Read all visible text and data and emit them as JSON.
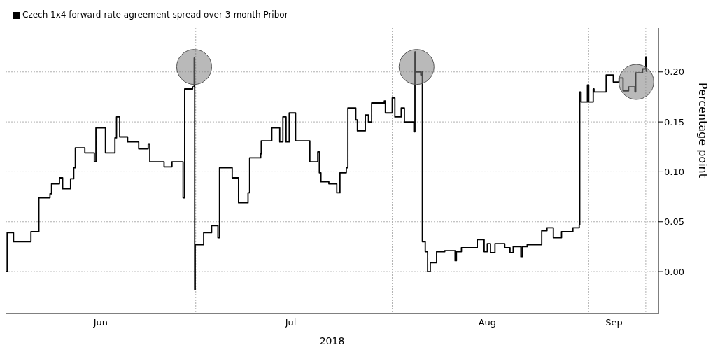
{
  "chart_data": {
    "type": "step",
    "legend": "top left",
    "grid": true,
    "ylabel": "Percentage point",
    "xlabel": "2018",
    "xlim": [
      "2018-06-01",
      "2018-09-12"
    ],
    "xticks": [
      {
        "value": "2018-06-01",
        "label": null
      },
      {
        "value": "2018-06-16",
        "label": "Jun"
      },
      {
        "value": "2018-07-01",
        "label": null
      },
      {
        "value": "2018-07-16",
        "label": "Jul"
      },
      {
        "value": "2018-08-01",
        "label": null
      },
      {
        "value": "2018-08-16",
        "label": "Aug"
      },
      {
        "value": "2018-09-01",
        "label": null
      },
      {
        "value": "2018-09-05",
        "label": "Sep"
      },
      {
        "value": "2018-09-10",
        "label": null
      }
    ],
    "ylim": [
      -0.042,
      0.244
    ],
    "yticks": [
      {
        "value": 0,
        "label": "0.00"
      },
      {
        "value": 0.05,
        "label": "0.05"
      },
      {
        "value": 0.1,
        "label": "0.10"
      },
      {
        "value": 0.15,
        "label": "0.15"
      },
      {
        "value": 0.2,
        "label": "0.20"
      }
    ],
    "x": [
      "2018-06-01T00:00",
      "2018-06-01T06:00",
      "2018-06-02T06:00",
      "2018-06-05T00:00",
      "2018-06-06T06:00",
      "2018-06-08T00:00",
      "2018-06-08T06:00",
      "2018-06-09T12:00",
      "2018-06-10T00:00",
      "2018-06-11T06:00",
      "2018-06-11T18:00",
      "2018-06-12T00:00",
      "2018-06-13T12:00",
      "2018-06-15T00:00",
      "2018-06-15T06:00",
      "2018-06-16T18:00",
      "2018-06-18T06:00",
      "2018-06-18T12:00",
      "2018-06-19T00:00",
      "2018-06-20T06:00",
      "2018-06-22T00:00",
      "2018-06-23T12:00",
      "2018-06-23T18:00",
      "2018-06-26T00:00",
      "2018-06-27T06:00",
      "2018-06-29T00:00",
      "2018-06-29T06:00",
      "2018-06-30T12:00",
      "2018-06-30T18:00",
      "2018-06-30T20:00",
      "2018-06-30T22:00",
      "2018-07-02T06:00",
      "2018-07-03T12:00",
      "2018-07-04T12:00",
      "2018-07-04T18:00",
      "2018-07-06T18:00",
      "2018-07-07T18:00",
      "2018-07-09T06:00",
      "2018-07-09T12:00",
      "2018-07-11T06:00",
      "2018-07-11T08:00",
      "2018-07-13T00:00",
      "2018-07-14T06:00",
      "2018-07-14T18:00",
      "2018-07-15T06:00",
      "2018-07-15T18:00",
      "2018-07-16T18:00",
      "2018-07-19T00:00",
      "2018-07-20T06:00",
      "2018-07-20T12:00",
      "2018-07-20T18:00",
      "2018-07-22T00:00",
      "2018-07-23T06:00",
      "2018-07-23T18:00",
      "2018-07-24T18:00",
      "2018-07-25T00:00",
      "2018-07-26T06:00",
      "2018-07-26T12:00",
      "2018-07-27T18:00",
      "2018-07-28T06:00",
      "2018-07-28T18:00",
      "2018-07-30T18:00",
      "2018-07-30T22:00",
      "2018-08-01T00:00",
      "2018-08-01T10:00",
      "2018-08-02T10:00",
      "2018-08-02T22:00",
      "2018-08-04T10:00",
      "2018-08-04T14:00",
      "2018-08-04T16:00",
      "2018-08-05T12:00",
      "2018-08-05T17:00",
      "2018-08-05T18:00",
      "2018-08-06T05:00",
      "2018-08-06T14:00",
      "2018-08-07T00:00",
      "2018-08-08T00:00",
      "2018-08-09T07:00",
      "2018-08-10T22:00",
      "2018-08-11T03:00",
      "2018-08-11T22:00",
      "2018-08-14T10:00",
      "2018-08-15T12:00",
      "2018-08-16T00:00",
      "2018-08-16T12:00",
      "2018-08-17T05:00",
      "2018-08-18T18:00",
      "2018-08-19T14:00",
      "2018-08-20T02:00",
      "2018-08-21T07:00",
      "2018-08-21T12:00",
      "2018-08-22T07:00",
      "2018-08-24T14:00",
      "2018-08-25T10:00",
      "2018-08-26T10:00",
      "2018-08-27T17:00",
      "2018-08-29T12:00",
      "2018-08-30T12:00",
      "2018-08-30T14:00",
      "2018-08-30T19:00",
      "2018-08-31T19:00",
      "2018-09-01T00:00",
      "2018-09-01T17:00",
      "2018-09-01T20:00",
      "2018-09-03T18:00",
      "2018-09-04T21:00",
      "2018-09-05T19:00",
      "2018-09-06T10:00",
      "2018-09-07T07:00",
      "2018-09-08T07:00",
      "2018-09-08T10:00",
      "2018-09-09T12:00",
      "2018-09-10T00:00",
      "2018-09-10T02:00"
    ],
    "series": [
      {
        "name": "Czech 1x4 forward-rate agreement spread over 3-month Pribor",
        "color": "#000000",
        "values": [
          0.0,
          0.039,
          0.03,
          0.04,
          0.074,
          0.078,
          0.088,
          0.094,
          0.083,
          0.093,
          0.104,
          0.124,
          0.119,
          0.11,
          0.144,
          0.119,
          0.134,
          0.155,
          0.135,
          0.13,
          0.123,
          0.128,
          0.11,
          0.105,
          0.11,
          0.074,
          0.183,
          0.185,
          0.214,
          -0.018,
          0.027,
          0.039,
          0.046,
          0.034,
          0.104,
          0.094,
          0.069,
          0.079,
          0.114,
          0.118,
          0.131,
          0.144,
          0.13,
          0.155,
          0.13,
          0.159,
          0.131,
          0.11,
          0.12,
          0.099,
          0.09,
          0.088,
          0.079,
          0.099,
          0.104,
          0.164,
          0.152,
          0.141,
          0.157,
          0.15,
          0.169,
          0.171,
          0.159,
          0.174,
          0.155,
          0.164,
          0.15,
          0.14,
          0.22,
          0.2,
          0.197,
          0.2,
          0.03,
          0.02,
          0.0,
          0.009,
          0.02,
          0.021,
          0.011,
          0.02,
          0.024,
          0.032,
          0.02,
          0.028,
          0.019,
          0.028,
          0.024,
          0.019,
          0.025,
          0.015,
          0.025,
          0.027,
          0.041,
          0.044,
          0.034,
          0.04,
          0.044,
          0.047,
          0.18,
          0.17,
          0.187,
          0.17,
          0.183,
          0.18,
          0.197,
          0.19,
          0.194,
          0.181,
          0.185,
          0.18,
          0.199,
          0.203,
          0.215,
          0.2
        ]
      }
    ]
  }
}
